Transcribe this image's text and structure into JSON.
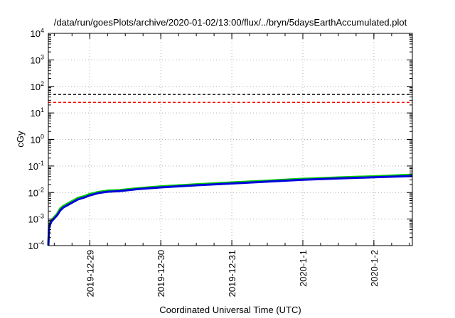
{
  "chart_data": {
    "type": "line",
    "title": "/data/run/goesPlots/archive/2020-01-02/13:00/flux/../bryn/5daysEarthAccumulated.plot",
    "xlabel": "Coordinated Universal Time (UTC)",
    "ylabel": "cGy",
    "yscale": "log",
    "ylim": [
      0.0001,
      10000
    ],
    "xlim": [
      "2019-12-28 10:00",
      "2020-01-02 13:00"
    ],
    "grid": true,
    "x_ticks": [
      "2019-12-29",
      "2019-12-30",
      "2019-12-31",
      "2020-1-1",
      "2020-1-2"
    ],
    "y_ticks": [
      {
        "base": "10",
        "exp": "-4"
      },
      {
        "base": "10",
        "exp": "-3"
      },
      {
        "base": "10",
        "exp": "-2"
      },
      {
        "base": "10",
        "exp": "-1"
      },
      {
        "base": "10",
        "exp": "0"
      },
      {
        "base": "10",
        "exp": "1"
      },
      {
        "base": "10",
        "exp": "2"
      },
      {
        "base": "10",
        "exp": "3"
      },
      {
        "base": "10",
        "exp": "4"
      }
    ],
    "thresholds": [
      {
        "value": 50,
        "color": "#000000"
      },
      {
        "value": 25,
        "color": "#ff0000"
      }
    ],
    "series": [
      {
        "color": "#00cc00",
        "x": [
          "2019-12-28 10:00",
          "2019-12-28 10:15",
          "2019-12-28 11:00",
          "2019-12-28 13:00",
          "2019-12-28 14:00",
          "2019-12-28 15:00",
          "2019-12-28 17:00",
          "2019-12-28 20:00",
          "2019-12-28 22:00",
          "2019-12-29 00:00",
          "2019-12-29 03:00",
          "2019-12-29 06:00",
          "2019-12-29 10:00",
          "2019-12-29 16:00",
          "2019-12-30 00:00",
          "2019-12-30 12:00",
          "2019-12-31 00:00",
          "2019-12-31 12:00",
          "2020-01-01 00:00",
          "2020-01-01 12:00",
          "2020-01-02 00:00",
          "2020-01-02 13:00"
        ],
        "values": [
          0.0001,
          0.0006,
          0.0009,
          0.0016,
          0.0025,
          0.0031,
          0.0041,
          0.0063,
          0.0072,
          0.0088,
          0.0106,
          0.0118,
          0.0123,
          0.0145,
          0.017,
          0.0205,
          0.024,
          0.028,
          0.033,
          0.037,
          0.041,
          0.047
        ]
      },
      {
        "color": "#0000dd",
        "x": [
          "2019-12-28 10:00",
          "2019-12-28 10:15",
          "2019-12-28 11:00",
          "2019-12-28 13:00",
          "2019-12-28 14:00",
          "2019-12-28 15:00",
          "2019-12-28 17:00",
          "2019-12-28 20:00",
          "2019-12-28 22:00",
          "2019-12-29 00:00",
          "2019-12-29 03:00",
          "2019-12-29 06:00",
          "2019-12-29 10:00",
          "2019-12-29 16:00",
          "2019-12-30 00:00",
          "2019-12-30 12:00",
          "2019-12-31 00:00",
          "2019-12-31 12:00",
          "2020-01-01 00:00",
          "2020-01-01 12:00",
          "2020-01-02 00:00",
          "2020-01-02 13:00"
        ],
        "values": [
          0.0001,
          0.0005,
          0.0008,
          0.0014,
          0.0021,
          0.0027,
          0.0036,
          0.0055,
          0.0064,
          0.0078,
          0.0096,
          0.0107,
          0.0113,
          0.0134,
          0.0156,
          0.0188,
          0.022,
          0.0258,
          0.0303,
          0.034,
          0.0376,
          0.042
        ]
      }
    ]
  }
}
